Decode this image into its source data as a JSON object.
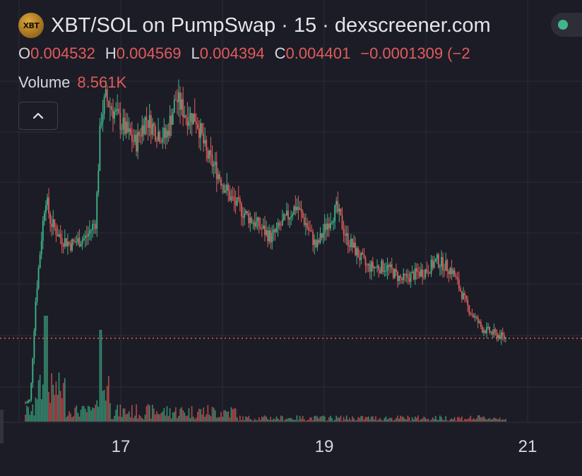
{
  "header": {
    "token_logo_text": "XBT",
    "title": "XBT/SOL on PumpSwap · 15 · dexscreener.com"
  },
  "ohlc": {
    "o_key": "O",
    "o_value": "0.004532",
    "h_key": "H",
    "h_value": "0.004569",
    "l_key": "L",
    "l_value": "0.004394",
    "c_key": "C",
    "c_value": "0.004401",
    "change": "−0.0001309 (−2"
  },
  "volume": {
    "label": "Volume",
    "value": "8.561K"
  },
  "colors": {
    "up": "#3fb68b",
    "down": "#e05c5c",
    "background": "#1c1c26",
    "grid": "#2b2b36"
  },
  "icons": {
    "status": "status-dot-icon",
    "collapse": "chevron-up-icon"
  },
  "chart_data": {
    "type": "candlestick",
    "x_ticks": [
      "17",
      "19",
      "21"
    ],
    "current_price": 0.004401,
    "ylim": [
      0.0022,
      0.0132
    ],
    "anchors": [
      [
        16.1,
        0.0024
      ],
      [
        16.15,
        0.0025
      ],
      [
        16.2,
        0.0055
      ],
      [
        16.25,
        0.0072
      ],
      [
        16.3,
        0.0088
      ],
      [
        16.35,
        0.008
      ],
      [
        16.45,
        0.0075
      ],
      [
        16.55,
        0.0073
      ],
      [
        16.7,
        0.0075
      ],
      [
        16.8,
        0.008
      ],
      [
        16.85,
        0.0112
      ],
      [
        16.9,
        0.0118
      ],
      [
        17.0,
        0.0113
      ],
      [
        17.1,
        0.0108
      ],
      [
        17.2,
        0.0104
      ],
      [
        17.3,
        0.0112
      ],
      [
        17.4,
        0.0108
      ],
      [
        17.5,
        0.0106
      ],
      [
        17.6,
        0.0118
      ],
      [
        17.7,
        0.0113
      ],
      [
        17.8,
        0.0112
      ],
      [
        17.85,
        0.0107
      ],
      [
        17.9,
        0.0101
      ],
      [
        18.0,
        0.0096
      ],
      [
        18.15,
        0.0087
      ],
      [
        18.3,
        0.0082
      ],
      [
        18.45,
        0.0078
      ],
      [
        18.55,
        0.0075
      ],
      [
        18.7,
        0.0081
      ],
      [
        18.8,
        0.0085
      ],
      [
        18.9,
        0.0079
      ],
      [
        19.0,
        0.0072
      ],
      [
        19.1,
        0.0079
      ],
      [
        19.2,
        0.0084
      ],
      [
        19.3,
        0.0075
      ],
      [
        19.5,
        0.0066
      ],
      [
        19.7,
        0.0066
      ],
      [
        19.85,
        0.0062
      ],
      [
        20.0,
        0.0064
      ],
      [
        20.1,
        0.0065
      ],
      [
        20.2,
        0.0068
      ],
      [
        20.35,
        0.0065
      ],
      [
        20.5,
        0.0054
      ],
      [
        20.65,
        0.0047
      ],
      [
        20.8,
        0.0045
      ],
      [
        20.9,
        0.0044
      ]
    ]
  }
}
